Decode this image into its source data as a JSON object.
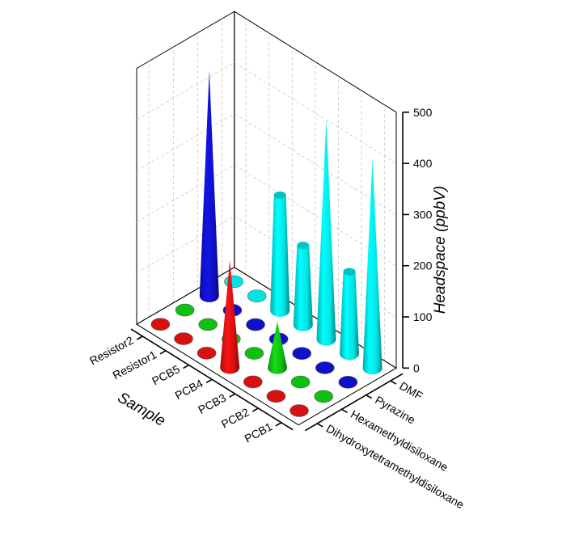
{
  "chart_data": {
    "type": "bar",
    "subtype": "3d-cone",
    "zlabel": "Headspace (ppbV)",
    "xlabel": "Sample",
    "zlim": [
      0,
      500
    ],
    "zticks": [
      "0",
      "100",
      "200",
      "300",
      "400",
      "500"
    ],
    "samples": [
      "PCB1",
      "PCB2",
      "PCB3",
      "PCB4",
      "PCB5",
      "Resistor1",
      "Resistor2"
    ],
    "compounds": [
      "DMF",
      "Pyrazine",
      "Hexamethyldisiloxane",
      "Dihydroxytetramethyldisiloxane"
    ],
    "compound_colors": {
      "DMF": "#00e5e5",
      "Pyrazine": "#1010c8",
      "Hexamethyldisiloxane": "#10c010",
      "Dihydroxytetramethyldisiloxane": "#d81010"
    },
    "series": [
      {
        "name": "DMF",
        "values": [
          410,
          160,
          430,
          155,
          225,
          0,
          0
        ]
      },
      {
        "name": "Pyrazine",
        "values": [
          0,
          0,
          0,
          0,
          0,
          0,
          440
        ]
      },
      {
        "name": "Hexamethyldisiloxane",
        "values": [
          0,
          0,
          90,
          0,
          0,
          0,
          0
        ]
      },
      {
        "name": "Dihydroxytetramethyldisiloxane",
        "values": [
          0,
          0,
          0,
          210,
          0,
          0,
          0
        ]
      }
    ],
    "grid": true
  }
}
